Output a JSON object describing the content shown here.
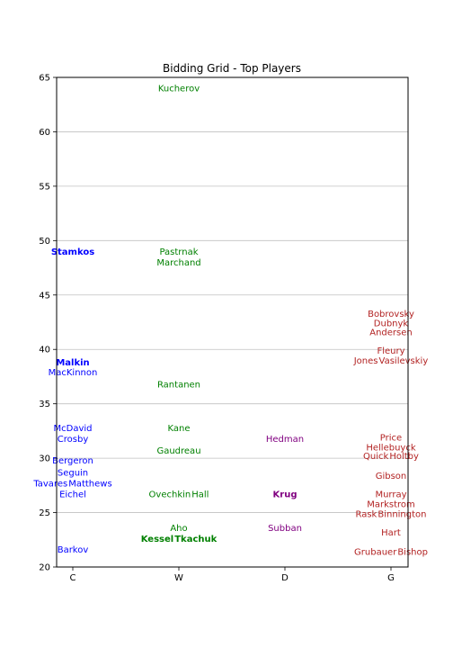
{
  "chart_data": {
    "type": "scatter",
    "title": "Bidding Grid - Top Players",
    "xlabel": "",
    "ylabel": "",
    "x_categories": [
      "C",
      "W",
      "D",
      "G"
    ],
    "ylim": [
      20,
      65
    ],
    "yticks": [
      20,
      25,
      30,
      35,
      40,
      45,
      50,
      55,
      60,
      65
    ],
    "grid": "horizontal",
    "colors": {
      "C": "#0000ff",
      "W": "#008000",
      "D": "#800080",
      "G": "#b22222"
    },
    "points": [
      {
        "name": "Kucherov",
        "x": "W",
        "y": 64.0,
        "bold": false
      },
      {
        "name": "Stamkos",
        "x": "C",
        "y": 49.0,
        "bold": true
      },
      {
        "name": "Pastrnak",
        "x": "W",
        "y": 49.0,
        "bold": false
      },
      {
        "name": "Marchand",
        "x": "W",
        "y": 48.0,
        "bold": false
      },
      {
        "name": "Bobrovsky",
        "x": "G",
        "y": 43.3,
        "bold": false
      },
      {
        "name": "Dubnyk",
        "x": "G",
        "y": 42.4,
        "bold": false
      },
      {
        "name": "Andersen",
        "x": "G",
        "y": 41.6,
        "bold": false
      },
      {
        "name": "Fleury",
        "x": "G",
        "y": 39.9,
        "bold": false
      },
      {
        "name": "Jones",
        "x": "G",
        "y": 39.0,
        "bold": false
      },
      {
        "name": "Vasilevskiy",
        "x": "G",
        "y": 39.0,
        "bold": false
      },
      {
        "name": "Malkin",
        "x": "C",
        "y": 38.8,
        "bold": true
      },
      {
        "name": "MacKinnon",
        "x": "C",
        "y": 37.9,
        "bold": false
      },
      {
        "name": "Rantanen",
        "x": "W",
        "y": 36.8,
        "bold": false
      },
      {
        "name": "McDavid",
        "x": "C",
        "y": 32.8,
        "bold": false
      },
      {
        "name": "Kane",
        "x": "W",
        "y": 32.8,
        "bold": false
      },
      {
        "name": "Crosby",
        "x": "C",
        "y": 31.8,
        "bold": false
      },
      {
        "name": "Hedman",
        "x": "D",
        "y": 31.8,
        "bold": false
      },
      {
        "name": "Price",
        "x": "G",
        "y": 31.9,
        "bold": false
      },
      {
        "name": "Hellebuyck",
        "x": "G",
        "y": 31.0,
        "bold": false
      },
      {
        "name": "Gaudreau",
        "x": "W",
        "y": 30.7,
        "bold": false
      },
      {
        "name": "Quick",
        "x": "G",
        "y": 30.2,
        "bold": false
      },
      {
        "name": "Holtby",
        "x": "G",
        "y": 30.2,
        "bold": false
      },
      {
        "name": "Bergeron",
        "x": "C",
        "y": 29.8,
        "bold": false
      },
      {
        "name": "Seguin",
        "x": "C",
        "y": 28.7,
        "bold": false
      },
      {
        "name": "Gibson",
        "x": "G",
        "y": 28.4,
        "bold": false
      },
      {
        "name": "Tavares",
        "x": "C",
        "y": 27.7,
        "bold": false
      },
      {
        "name": "Matthews",
        "x": "C",
        "y": 27.7,
        "bold": false
      },
      {
        "name": "Eichel",
        "x": "C",
        "y": 26.7,
        "bold": false
      },
      {
        "name": "Ovechkin",
        "x": "W",
        "y": 26.7,
        "bold": false
      },
      {
        "name": "Hall",
        "x": "W",
        "y": 26.7,
        "bold": false
      },
      {
        "name": "Krug",
        "x": "D",
        "y": 26.7,
        "bold": true
      },
      {
        "name": "Murray",
        "x": "G",
        "y": 26.7,
        "bold": false
      },
      {
        "name": "Markstrom",
        "x": "G",
        "y": 25.8,
        "bold": false
      },
      {
        "name": "Rask",
        "x": "G",
        "y": 24.9,
        "bold": false
      },
      {
        "name": "Binnington",
        "x": "G",
        "y": 24.9,
        "bold": false
      },
      {
        "name": "Aho",
        "x": "W",
        "y": 23.6,
        "bold": false
      },
      {
        "name": "Subban",
        "x": "D",
        "y": 23.6,
        "bold": false
      },
      {
        "name": "Hart",
        "x": "G",
        "y": 23.2,
        "bold": false
      },
      {
        "name": "Kessel",
        "x": "W",
        "y": 22.6,
        "bold": true
      },
      {
        "name": "Tkachuk",
        "x": "W",
        "y": 22.6,
        "bold": true
      },
      {
        "name": "Barkov",
        "x": "C",
        "y": 21.6,
        "bold": false
      },
      {
        "name": "Grubauer",
        "x": "G",
        "y": 21.4,
        "bold": false
      },
      {
        "name": "Bishop",
        "x": "G",
        "y": 21.4,
        "bold": false
      }
    ]
  }
}
